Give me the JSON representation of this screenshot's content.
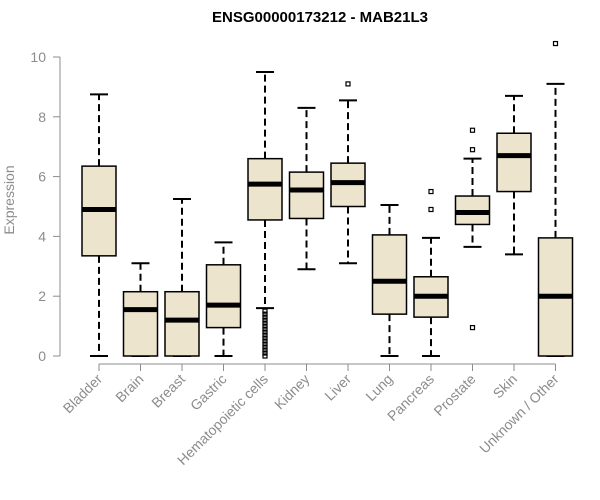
{
  "colors": {
    "box_fill": "#ede4cd",
    "stroke": "#000000",
    "axis": "#8c8c8c",
    "text": "#8c8c8c"
  },
  "chart_data": {
    "type": "boxplot",
    "title": "ENSG00000173212 - MAB21L3",
    "xlabel": "",
    "ylabel": "Expression",
    "ylim": [
      0,
      10
    ],
    "yticks": [
      0,
      2,
      4,
      6,
      8,
      10
    ],
    "categories": [
      "Bladder",
      "Brain",
      "Breast",
      "Gastric",
      "Hematopoietic cells",
      "Kidney",
      "Liver",
      "Lung",
      "Pancreas",
      "Prostate",
      "Skin",
      "Unknown / Other"
    ],
    "boxes": [
      {
        "name": "Bladder",
        "whisker_low": 0.0,
        "q1": 3.35,
        "median": 4.9,
        "q3": 6.35,
        "whisker_high": 8.75,
        "outliers": []
      },
      {
        "name": "Brain",
        "whisker_low": 0.0,
        "q1": 0.0,
        "median": 1.55,
        "q3": 2.15,
        "whisker_high": 3.1,
        "outliers": []
      },
      {
        "name": "Breast",
        "whisker_low": 0.0,
        "q1": 0.0,
        "median": 1.2,
        "q3": 2.15,
        "whisker_high": 5.25,
        "outliers": []
      },
      {
        "name": "Gastric",
        "whisker_low": 0.0,
        "q1": 0.95,
        "median": 1.7,
        "q3": 3.05,
        "whisker_high": 3.8,
        "outliers": []
      },
      {
        "name": "Hematopoietic cells",
        "whisker_low": 1.6,
        "q1": 4.55,
        "median": 5.75,
        "q3": 6.6,
        "whisker_high": 9.5,
        "outliers": [
          0.0,
          0.1,
          0.2,
          0.3,
          0.4,
          0.5,
          0.6,
          0.7,
          0.8,
          0.9,
          1.0,
          1.1,
          1.2,
          1.3,
          1.4,
          1.5
        ]
      },
      {
        "name": "Kidney",
        "whisker_low": 2.9,
        "q1": 4.6,
        "median": 5.55,
        "q3": 6.15,
        "whisker_high": 8.3,
        "outliers": []
      },
      {
        "name": "Liver",
        "whisker_low": 3.1,
        "q1": 5.0,
        "median": 5.8,
        "q3": 6.45,
        "whisker_high": 8.55,
        "outliers": [
          9.1
        ]
      },
      {
        "name": "Lung",
        "whisker_low": 0.0,
        "q1": 1.4,
        "median": 2.5,
        "q3": 4.05,
        "whisker_high": 5.05,
        "outliers": []
      },
      {
        "name": "Pancreas",
        "whisker_low": 0.0,
        "q1": 1.3,
        "median": 2.0,
        "q3": 2.65,
        "whisker_high": 3.95,
        "outliers": [
          4.9,
          5.5
        ]
      },
      {
        "name": "Prostate",
        "whisker_low": 3.65,
        "q1": 4.4,
        "median": 4.8,
        "q3": 5.35,
        "whisker_high": 6.6,
        "outliers": [
          0.95,
          6.9,
          7.55
        ]
      },
      {
        "name": "Skin",
        "whisker_low": 3.4,
        "q1": 5.5,
        "median": 6.7,
        "q3": 7.45,
        "whisker_high": 8.7,
        "outliers": []
      },
      {
        "name": "Unknown / Other",
        "whisker_low": 0.0,
        "q1": 0.0,
        "median": 2.0,
        "q3": 3.95,
        "whisker_high": 9.1,
        "outliers": [
          10.45
        ]
      }
    ]
  }
}
